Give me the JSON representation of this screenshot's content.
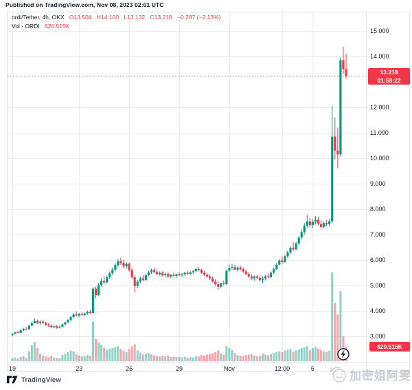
{
  "published_line": "Published on TradingView.com, Nov 08, 2023 02:01 UTC",
  "legend": {
    "symbol_line": "ordi/Tether, 4h, OKX",
    "o": "O13.504",
    "h": "H14.100",
    "l": "L13.132",
    "c": "C13.218",
    "change": "−0.287 (−2.13%)",
    "vol_label": "Vol · ORDI",
    "vol_value": "620.515K"
  },
  "price_badge": {
    "price": "13.218",
    "countdown": "01:58:22"
  },
  "volume_badge": "620.515K",
  "watermark_text": "加密姐阿雯",
  "footer_brand": "TradingView",
  "colors": {
    "up": "#089981",
    "down": "#F23645",
    "vol_up": "rgba(8,153,129,0.45)",
    "vol_down": "rgba(242,54,69,0.45)",
    "grid": "#e9ebf0",
    "frame": "#e0e3eb",
    "axis_text": "#131722",
    "badge": "#F23645",
    "price_line": "#80838e",
    "watermark": "#cbccd1"
  },
  "chart_data": {
    "type": "candlestick+volume",
    "symbol": "ordi/Tether",
    "interval": "4h",
    "exchange": "OKX",
    "title": "ordi/Tether, 4h, OKX",
    "ylim_visible": [
      2.0,
      15.75
    ],
    "y_ticks": [
      15,
      14,
      12,
      11,
      10,
      9,
      8,
      7,
      6,
      5,
      4,
      3
    ],
    "x_ticks": [
      {
        "label": "19",
        "i": 0
      },
      {
        "label": "23",
        "i": 24
      },
      {
        "label": "26",
        "i": 42
      },
      {
        "label": "29",
        "i": 60
      },
      {
        "label": "Nov",
        "i": 78
      },
      {
        "label": "12:00",
        "i": 97
      },
      {
        "label": "6",
        "i": 108
      }
    ],
    "current_price": 13.218,
    "current_ohlc": {
      "open": 13.504,
      "high": 14.1,
      "low": 13.132,
      "close": 13.218
    },
    "current_volume_K": 620.515,
    "grid": true,
    "legend_position": "top-left",
    "candles_format": [
      "open",
      "high",
      "low",
      "close",
      "volume_K"
    ],
    "candles": [
      [
        3.05,
        3.12,
        3.02,
        3.1,
        130
      ],
      [
        3.1,
        3.18,
        3.08,
        3.16,
        160
      ],
      [
        3.16,
        3.22,
        3.12,
        3.14,
        110
      ],
      [
        3.14,
        3.26,
        3.13,
        3.24,
        180
      ],
      [
        3.24,
        3.33,
        3.21,
        3.3,
        210
      ],
      [
        3.3,
        3.36,
        3.25,
        3.28,
        140
      ],
      [
        3.28,
        3.45,
        3.27,
        3.42,
        420
      ],
      [
        3.42,
        3.58,
        3.4,
        3.52,
        680
      ],
      [
        3.52,
        3.7,
        3.5,
        3.6,
        820
      ],
      [
        3.6,
        3.66,
        3.48,
        3.52,
        560
      ],
      [
        3.52,
        3.62,
        3.46,
        3.58,
        300
      ],
      [
        3.58,
        3.64,
        3.5,
        3.53,
        240
      ],
      [
        3.53,
        3.56,
        3.42,
        3.45,
        200
      ],
      [
        3.45,
        3.52,
        3.38,
        3.42,
        170
      ],
      [
        3.42,
        3.48,
        3.33,
        3.36,
        220
      ],
      [
        3.36,
        3.44,
        3.32,
        3.4,
        150
      ],
      [
        3.4,
        3.45,
        3.3,
        3.34,
        130
      ],
      [
        3.34,
        3.42,
        3.31,
        3.38,
        120
      ],
      [
        3.38,
        3.5,
        3.36,
        3.47,
        260
      ],
      [
        3.47,
        3.58,
        3.44,
        3.55,
        310
      ],
      [
        3.55,
        3.68,
        3.52,
        3.64,
        380
      ],
      [
        3.64,
        3.8,
        3.6,
        3.76,
        450
      ],
      [
        3.76,
        3.92,
        3.72,
        3.86,
        420
      ],
      [
        3.86,
        3.98,
        3.78,
        3.82,
        300
      ],
      [
        3.82,
        3.92,
        3.76,
        3.88,
        240
      ],
      [
        3.88,
        3.96,
        3.8,
        3.84,
        200
      ],
      [
        3.84,
        3.94,
        3.78,
        3.9,
        210
      ],
      [
        3.9,
        4.02,
        3.85,
        3.96,
        260
      ],
      [
        3.96,
        4.05,
        3.88,
        3.92,
        230
      ],
      [
        3.92,
        4.95,
        3.9,
        4.88,
        1700
      ],
      [
        4.88,
        4.95,
        4.5,
        4.62,
        950
      ],
      [
        4.62,
        5.1,
        4.58,
        5.02,
        800
      ],
      [
        5.02,
        5.28,
        4.95,
        5.18,
        700
      ],
      [
        5.18,
        5.35,
        5.05,
        5.12,
        560
      ],
      [
        5.12,
        5.4,
        5.08,
        5.32,
        480
      ],
      [
        5.32,
        5.55,
        5.25,
        5.48,
        520
      ],
      [
        5.48,
        5.7,
        5.4,
        5.62,
        560
      ],
      [
        5.62,
        5.88,
        5.55,
        5.8,
        600
      ],
      [
        5.8,
        6.05,
        5.72,
        5.95,
        640
      ],
      [
        5.95,
        6.1,
        5.8,
        5.88,
        520
      ],
      [
        5.88,
        6.02,
        5.68,
        5.75,
        440
      ],
      [
        5.75,
        5.92,
        5.65,
        5.85,
        380
      ],
      [
        5.85,
        5.9,
        5.55,
        5.6,
        520
      ],
      [
        5.6,
        5.68,
        5.25,
        5.32,
        640
      ],
      [
        5.32,
        5.4,
        4.72,
        4.98,
        720
      ],
      [
        4.98,
        5.22,
        4.9,
        5.15,
        460
      ],
      [
        5.15,
        5.35,
        5.08,
        5.28,
        360
      ],
      [
        5.28,
        5.4,
        5.15,
        5.22,
        280
      ],
      [
        5.22,
        5.45,
        5.18,
        5.4,
        320
      ],
      [
        5.4,
        5.58,
        5.35,
        5.52,
        340
      ],
      [
        5.52,
        5.66,
        5.45,
        5.6,
        300
      ],
      [
        5.6,
        5.68,
        5.48,
        5.53,
        250
      ],
      [
        5.53,
        5.6,
        5.4,
        5.45,
        220
      ],
      [
        5.45,
        5.55,
        5.38,
        5.5,
        200
      ],
      [
        5.5,
        5.55,
        5.35,
        5.4,
        230
      ],
      [
        5.4,
        5.5,
        5.32,
        5.45,
        210
      ],
      [
        5.45,
        5.52,
        5.3,
        5.35,
        240
      ],
      [
        5.35,
        5.46,
        5.28,
        5.42,
        190
      ],
      [
        5.42,
        5.5,
        5.34,
        5.38,
        180
      ],
      [
        5.38,
        5.48,
        5.3,
        5.44,
        170
      ],
      [
        5.44,
        5.52,
        5.36,
        5.4,
        180
      ],
      [
        5.4,
        5.48,
        5.32,
        5.44,
        160
      ],
      [
        5.44,
        5.54,
        5.38,
        5.5,
        190
      ],
      [
        5.5,
        5.58,
        5.42,
        5.46,
        150
      ],
      [
        5.46,
        5.56,
        5.4,
        5.52,
        170
      ],
      [
        5.52,
        5.62,
        5.46,
        5.56,
        160
      ],
      [
        5.56,
        5.7,
        5.5,
        5.65,
        220
      ],
      [
        5.65,
        5.72,
        5.55,
        5.6,
        200
      ],
      [
        5.6,
        5.66,
        5.45,
        5.5,
        260
      ],
      [
        5.5,
        5.58,
        5.38,
        5.42,
        240
      ],
      [
        5.42,
        5.5,
        5.3,
        5.35,
        280
      ],
      [
        5.35,
        5.44,
        5.22,
        5.28,
        300
      ],
      [
        5.28,
        5.35,
        5.1,
        5.15,
        340
      ],
      [
        5.15,
        5.25,
        4.98,
        5.05,
        380
      ],
      [
        5.05,
        5.18,
        4.82,
        4.95,
        460
      ],
      [
        4.95,
        5.12,
        4.88,
        5.08,
        320
      ],
      [
        5.08,
        5.2,
        5.0,
        5.05,
        280
      ],
      [
        5.05,
        5.62,
        5.02,
        5.58,
        650
      ],
      [
        5.58,
        5.8,
        5.52,
        5.68,
        560
      ],
      [
        5.68,
        5.85,
        5.6,
        5.72,
        480
      ],
      [
        5.72,
        5.82,
        5.58,
        5.62,
        350
      ],
      [
        5.62,
        5.75,
        5.55,
        5.7,
        270
      ],
      [
        5.7,
        5.78,
        5.58,
        5.64,
        230
      ],
      [
        5.64,
        5.72,
        5.5,
        5.55,
        210
      ],
      [
        5.55,
        5.62,
        5.4,
        5.45,
        260
      ],
      [
        5.45,
        5.52,
        5.3,
        5.35,
        280
      ],
      [
        5.35,
        5.45,
        5.22,
        5.28,
        300
      ],
      [
        5.28,
        5.4,
        5.18,
        5.35,
        240
      ],
      [
        5.35,
        5.42,
        5.25,
        5.3,
        200
      ],
      [
        5.3,
        5.38,
        5.15,
        5.22,
        230
      ],
      [
        5.22,
        5.35,
        5.08,
        5.28,
        320
      ],
      [
        5.28,
        5.4,
        5.2,
        5.36,
        280
      ],
      [
        5.36,
        5.48,
        5.28,
        5.32,
        260
      ],
      [
        5.32,
        5.55,
        5.3,
        5.5,
        300
      ],
      [
        5.5,
        5.7,
        5.45,
        5.65,
        340
      ],
      [
        5.65,
        5.88,
        5.6,
        5.82,
        380
      ],
      [
        5.82,
        6.05,
        5.78,
        5.98,
        420
      ],
      [
        5.98,
        6.15,
        5.85,
        5.92,
        380
      ],
      [
        5.92,
        6.2,
        5.88,
        6.15,
        450
      ],
      [
        6.15,
        6.38,
        6.08,
        6.3,
        480
      ],
      [
        6.3,
        6.55,
        6.22,
        6.48,
        520
      ],
      [
        6.48,
        6.7,
        6.35,
        6.42,
        400
      ],
      [
        6.42,
        6.72,
        6.38,
        6.65,
        460
      ],
      [
        6.65,
        6.95,
        6.58,
        6.88,
        500
      ],
      [
        6.88,
        7.2,
        6.8,
        7.1,
        560
      ],
      [
        7.1,
        7.45,
        7.0,
        7.35,
        600
      ],
      [
        7.35,
        7.78,
        7.25,
        7.52,
        640
      ],
      [
        7.52,
        7.65,
        7.28,
        7.38,
        480
      ],
      [
        7.38,
        7.6,
        7.25,
        7.5,
        560
      ],
      [
        7.5,
        7.72,
        7.4,
        7.58,
        620
      ],
      [
        7.58,
        7.7,
        7.35,
        7.42,
        540
      ],
      [
        7.42,
        7.58,
        7.22,
        7.3,
        480
      ],
      [
        7.3,
        7.52,
        7.25,
        7.45,
        420
      ],
      [
        7.45,
        7.58,
        7.32,
        7.4,
        390
      ],
      [
        7.4,
        7.62,
        7.32,
        7.52,
        450
      ],
      [
        7.52,
        12.05,
        7.45,
        10.85,
        3800
      ],
      [
        10.85,
        11.6,
        9.95,
        10.3,
        2500
      ],
      [
        10.3,
        11.2,
        9.6,
        10.15,
        2000
      ],
      [
        10.15,
        13.95,
        10.05,
        13.85,
        3000
      ],
      [
        13.85,
        14.38,
        13.3,
        13.5,
        1060
      ],
      [
        13.504,
        14.1,
        13.132,
        13.218,
        620.515
      ]
    ]
  }
}
